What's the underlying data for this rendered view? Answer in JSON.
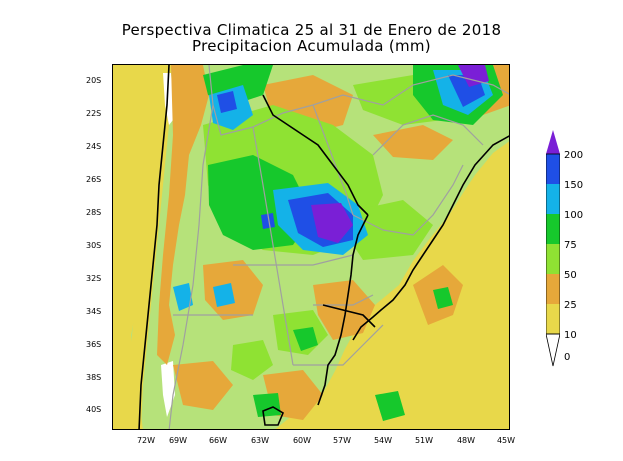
{
  "title": {
    "line1": "Perspectiva Climatica 25 al 31 de Enero de 2018",
    "line2": "Precipitacion Acumulada (mm)"
  },
  "axes": {
    "lat_labels": [
      "20S",
      "22S",
      "24S",
      "26S",
      "28S",
      "30S",
      "32S",
      "34S",
      "36S",
      "38S",
      "40S"
    ],
    "lon_labels": [
      "72W",
      "69W",
      "66W",
      "63W",
      "60W",
      "57W",
      "54W",
      "51W",
      "48W",
      "45W"
    ]
  },
  "legend": {
    "labels": [
      "200",
      "150",
      "100",
      "75",
      "50",
      "25",
      "10",
      "0"
    ],
    "colors": [
      "#7a1fd6",
      "#1f4fe6",
      "#14b2e8",
      "#16c82c",
      "#8fe233",
      "#e6a83a",
      "#e8d84a",
      "#ffffff"
    ]
  },
  "colors": {
    "ocean": "#e8d84a",
    "land_base": "#b6e27a",
    "borders": "#a0a0a0",
    "coast": "#000000",
    "andes_white": "#ffffff"
  }
}
